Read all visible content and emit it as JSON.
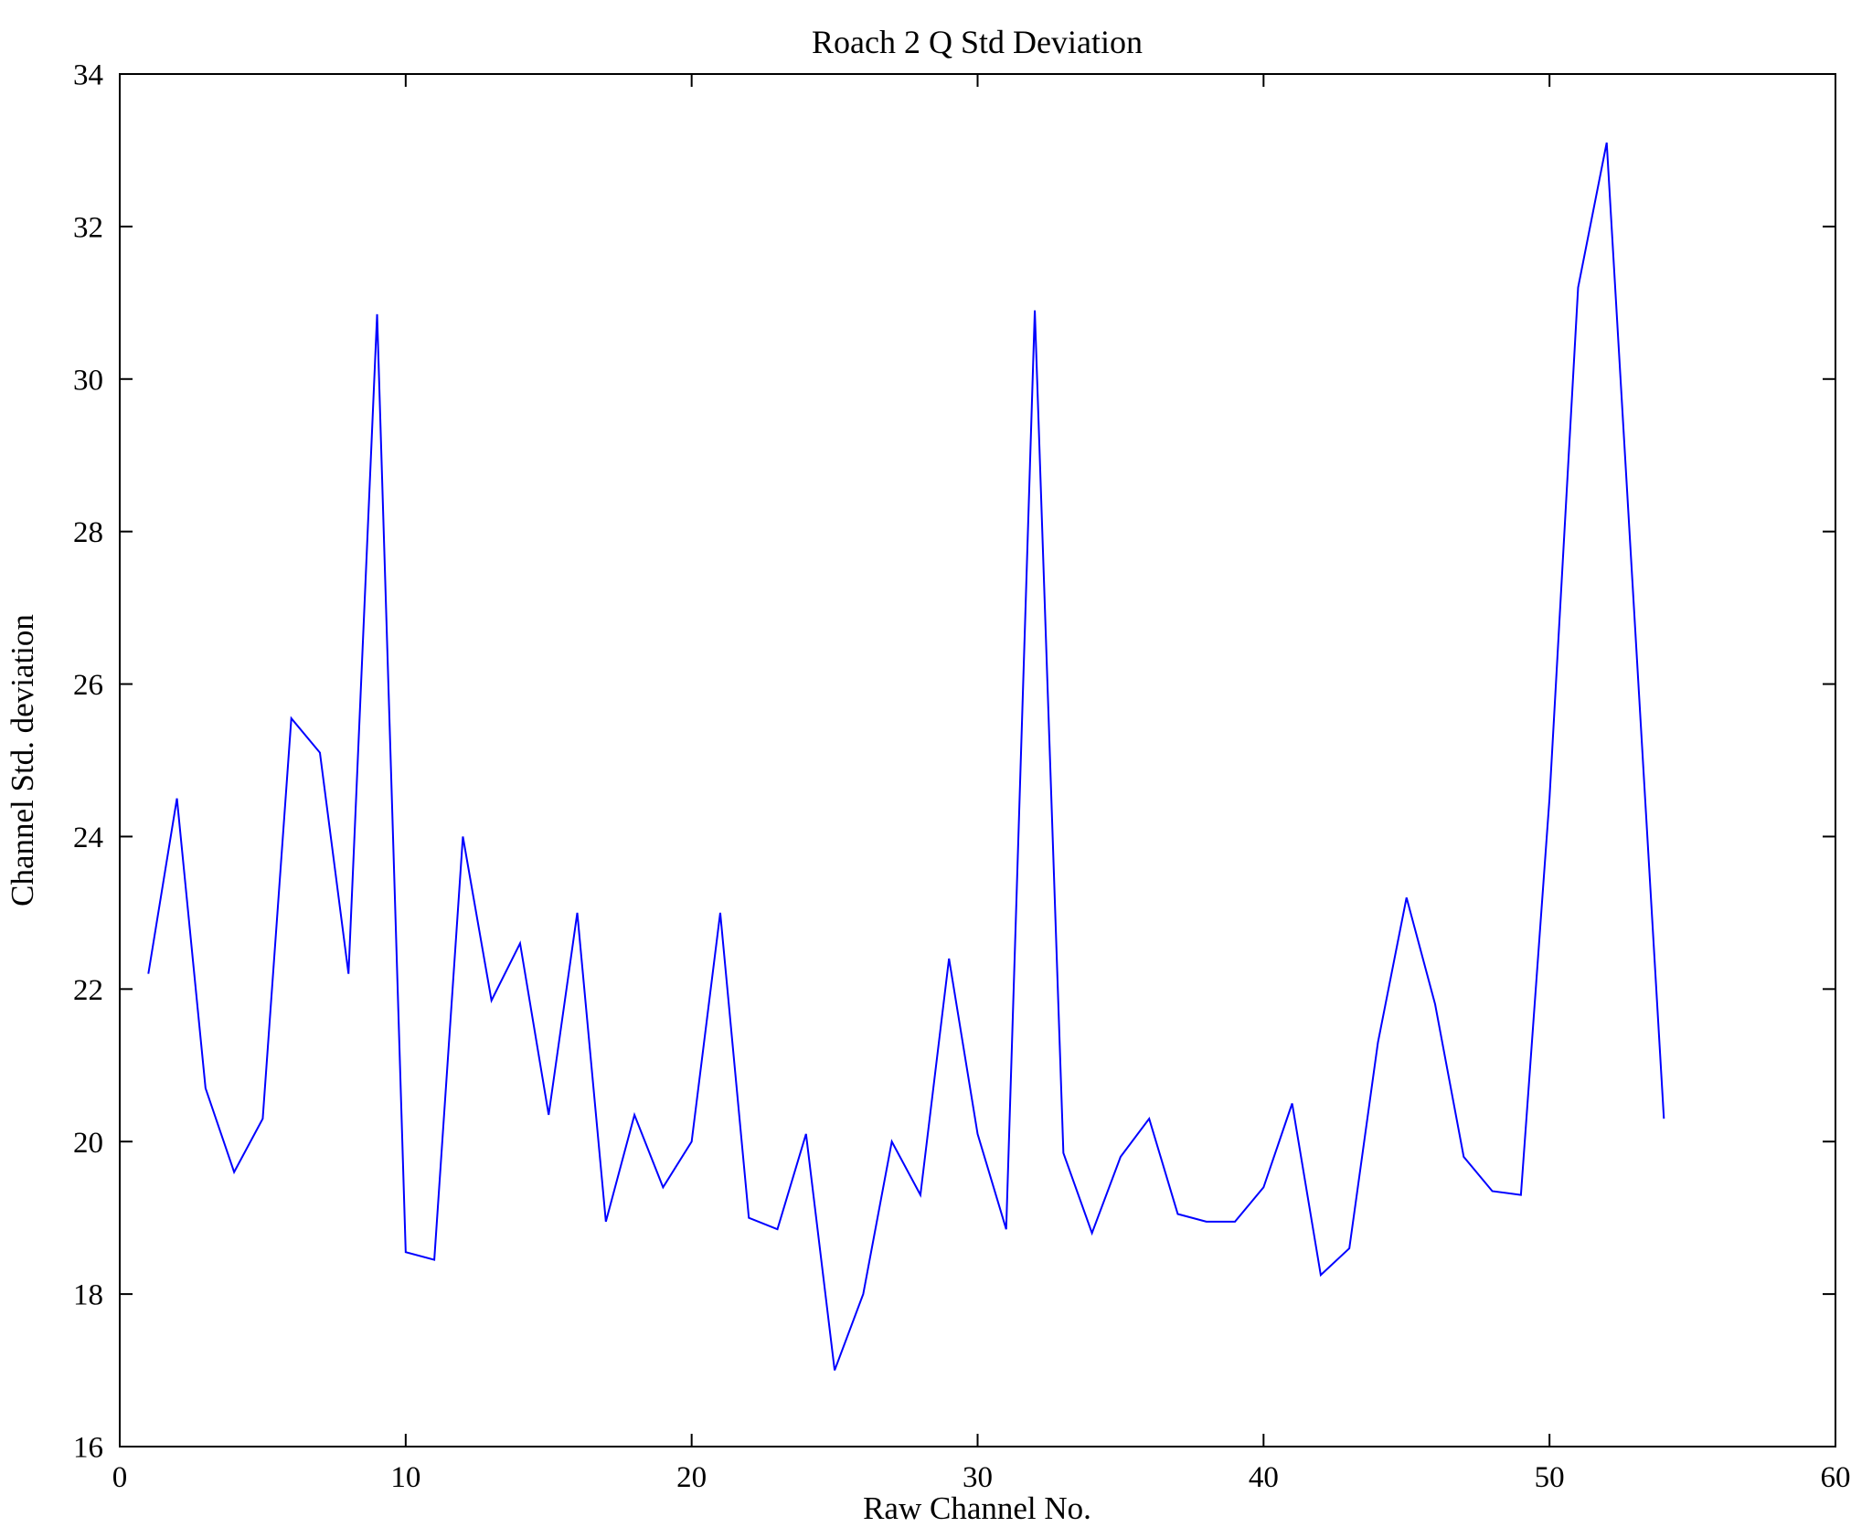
{
  "figure": {
    "title": "Roach 2 Q Std Deviation",
    "xlabel": "Raw Channel No.",
    "ylabel": "Channel Std. deviation"
  },
  "chart_data": {
    "type": "line",
    "title": "Roach 2 Q Std Deviation",
    "xlabel": "Raw Channel No.",
    "ylabel": "Channel Std. deviation",
    "xlim": [
      0,
      60
    ],
    "ylim": [
      16,
      34
    ],
    "xticks": [
      0,
      10,
      20,
      30,
      40,
      50,
      60
    ],
    "yticks": [
      16,
      18,
      20,
      22,
      24,
      26,
      28,
      30,
      32,
      34
    ],
    "grid": false,
    "legend": "none",
    "line_color": "#0000ff",
    "axis_color": "#000000",
    "x": [
      1,
      2,
      3,
      4,
      5,
      6,
      7,
      8,
      9,
      10,
      11,
      12,
      13,
      14,
      15,
      16,
      17,
      18,
      19,
      20,
      21,
      22,
      23,
      24,
      25,
      26,
      27,
      28,
      29,
      30,
      31,
      32,
      33,
      34,
      35,
      36,
      37,
      38,
      39,
      40,
      41,
      42,
      43,
      44,
      45,
      46,
      47,
      48,
      49,
      50,
      51,
      52,
      53,
      54
    ],
    "values": [
      22.2,
      24.5,
      20.7,
      19.6,
      20.3,
      25.55,
      25.1,
      22.2,
      30.85,
      18.55,
      18.45,
      24.0,
      21.85,
      22.6,
      20.35,
      23.0,
      18.95,
      20.35,
      19.4,
      20.0,
      23.0,
      19.0,
      18.85,
      20.1,
      17.0,
      18.0,
      20.0,
      19.3,
      22.4,
      20.1,
      18.85,
      30.9,
      19.85,
      18.8,
      19.8,
      20.3,
      19.05,
      18.95,
      18.95,
      19.4,
      20.5,
      18.25,
      18.6,
      21.3,
      23.2,
      21.8,
      19.8,
      19.35,
      19.3,
      24.5,
      31.2,
      33.1,
      26.7,
      20.3
    ]
  }
}
